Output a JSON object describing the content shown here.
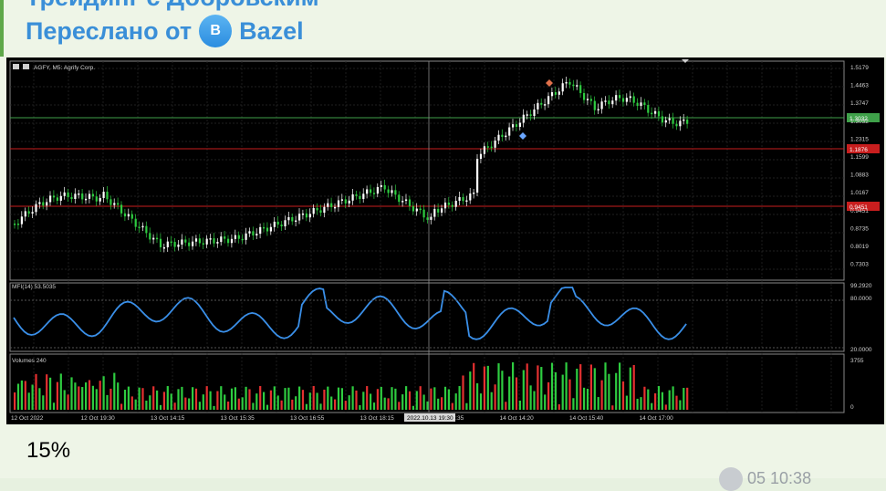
{
  "message": {
    "sender_partial": "Трейдинг с Добровским",
    "forwarded_prefix": "Переслано от",
    "forwarded_avatar_letter": "B",
    "forwarded_name": "Bazel",
    "caption": "15%",
    "meta_partial": "05 10:38"
  },
  "chart": {
    "symbol_header": "AGFY, M5: Agrify Corp.",
    "mfi_label": "MFI(14) 53.5035",
    "volume_label": "Volumes 240",
    "price_ticks": [
      "1.5179",
      "1.4463",
      "1.3747",
      "1.3032",
      "1.2315",
      "1.1599",
      "1.0883",
      "1.0167",
      "0.9451",
      "0.8735",
      "0.8019",
      "0.7303"
    ],
    "price_badges": [
      "1.3032",
      "1.1876",
      "0.9451"
    ],
    "mfi_ticks": [
      "99.2920",
      "80.0000",
      "20.0000"
    ],
    "volume_ticks": [
      "3755",
      "0"
    ],
    "time_ticks": [
      "12 Oct 2022",
      "12 Oct 19:30",
      "13 Oct 14:15",
      "13 Oct 15:35",
      "13 Oct 16:55",
      "13 Oct 18:15",
      "14 Oct 09:35",
      "14 Oct 14:20",
      "14 Oct 15:40",
      "14 Oct 17:00"
    ],
    "crosshair_time": "2022.10.13 19:30",
    "colors": {
      "up": "#ffffff",
      "up_alt": "#2ecc40",
      "down": "#2ecc40",
      "mfi": "#3a8fe8",
      "vol_up": "#2ecc40",
      "vol_down": "#e53030",
      "level_green": "#3fa14a",
      "level_red": "#c81e1e"
    }
  }
}
